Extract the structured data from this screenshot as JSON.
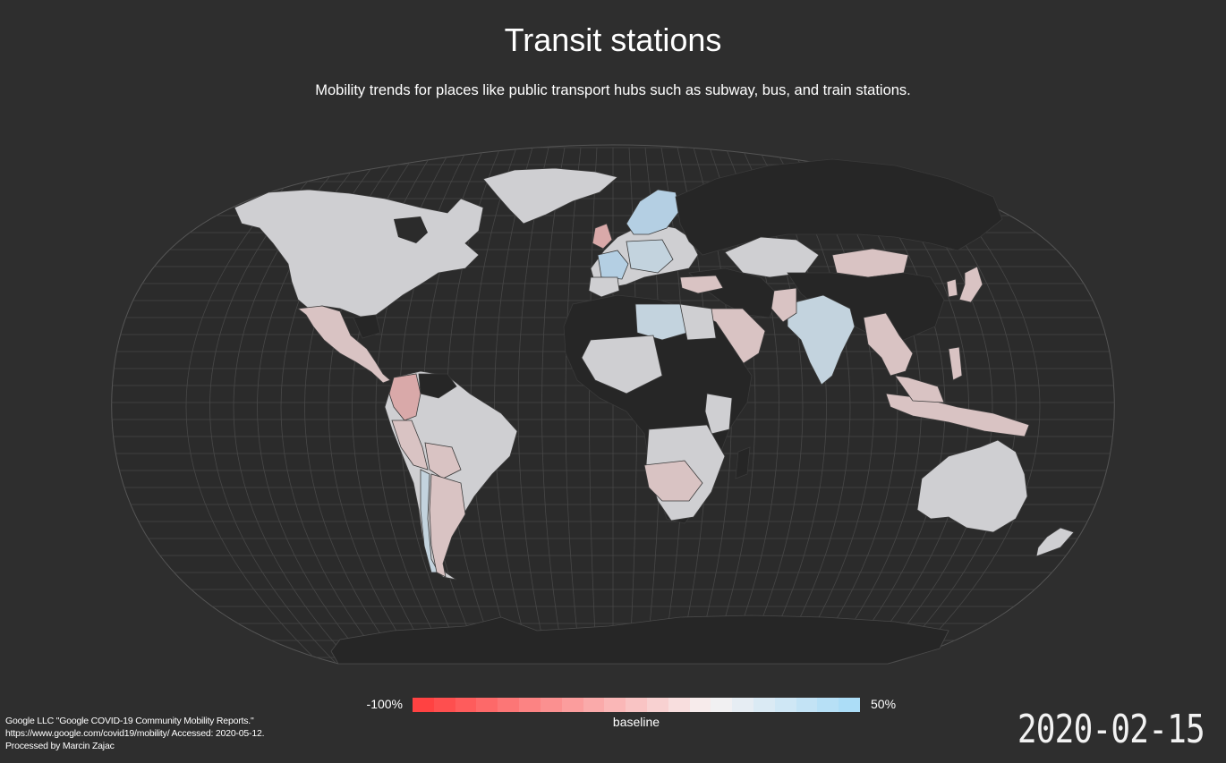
{
  "title": "Transit stations",
  "subtitle": "Mobility trends for places like public transport hubs such as subway, bus, and train stations.",
  "legend": {
    "min_label": "-100%",
    "max_label": "50%",
    "baseline_label": "baseline",
    "min_value": -100,
    "max_value": 50,
    "colors": {
      "min": "#ff3b3b",
      "baseline": "#f7f2f2",
      "max": "#a6dbf7"
    }
  },
  "date": "2020-02-15",
  "credits": [
    "Google LLC \"Google COVID-19 Community Mobility Reports.\"",
    "https://www.google.com/covid19/mobility/ Accessed: 2020-05-12.",
    "Processed by Marcin Zajac"
  ],
  "map_colors": {
    "background": "#2e2e2e",
    "no_data": "#262626",
    "neutral": "#cfcfd2",
    "slight_decline": "#d9c3c3",
    "decline": "#d9a9a9",
    "slight_increase": "#c3d3de",
    "increase": "#b4cfe3",
    "graticule": "#4a4a4a",
    "border": "#3a3a3a"
  }
}
